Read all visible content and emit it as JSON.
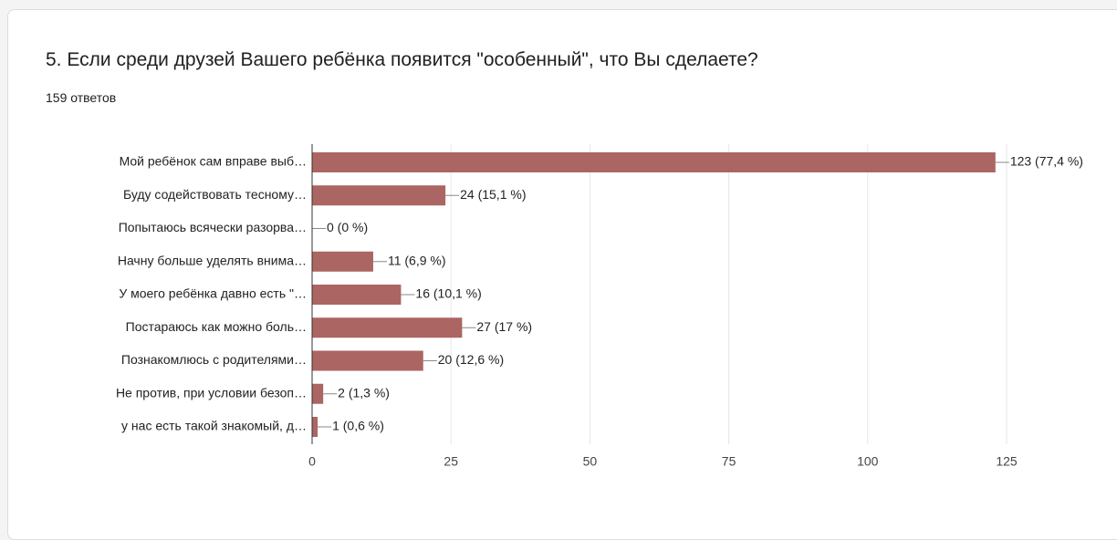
{
  "chart_data": {
    "type": "bar",
    "orientation": "horizontal",
    "title": "5. Если среди друзей Вашего ребёнка появится \"особенный\", что Вы сделаете?",
    "subtitle": "159 ответов",
    "categories": [
      "Мой ребёнок сам вправе выб…",
      "Буду содействовать тесному…",
      "Попытаюсь всячески разорва…",
      "Начну больше уделять внима…",
      "У моего ребёнка давно есть \"…",
      "Постараюсь как можно боль…",
      "Познакомлюсь с родителями…",
      "Не против, при условии безоп…",
      "у нас есть такой знакомый, д…"
    ],
    "values": [
      123,
      24,
      0,
      11,
      16,
      27,
      20,
      2,
      1
    ],
    "value_labels": [
      "123 (77,4 %)",
      "24 (15,1 %)",
      "0 (0 %)",
      "11 (6,9 %)",
      "16 (10,1 %)",
      "27 (17 %)",
      "20 (12,6 %)",
      "2 (1,3 %)",
      "1 (0,6 %)"
    ],
    "color": "#ab6562",
    "xlim": [
      0,
      125
    ],
    "xticks": [
      0,
      25,
      50,
      75,
      100,
      125
    ],
    "grid": true
  }
}
